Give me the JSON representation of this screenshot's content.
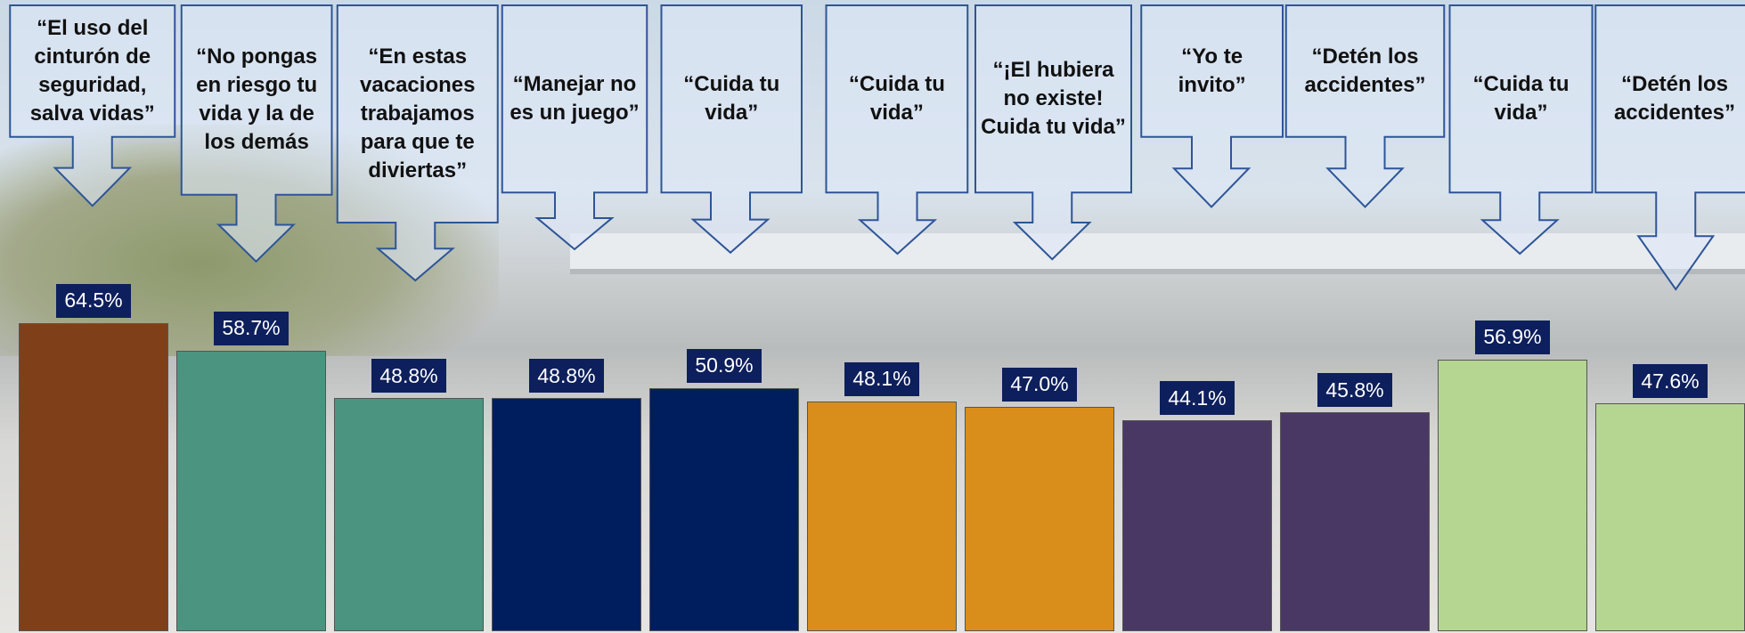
{
  "chart_data": {
    "type": "bar",
    "categories": [
      "“El uso del cinturón de seguridad, salva vidas”",
      "“No pongas en riesgo tu vida y la de los demás",
      "“En estas vacaciones trabajamos para que te diviertas”",
      "“Manejar no es un juego”",
      "“Cuida tu vida”",
      "“Cuida tu vida”",
      "“¡El hubiera no existe! Cuida tu vida”",
      "“Yo te invito”",
      "“Detén los accidentes”",
      "“Cuida tu vida”",
      "“Detén los accidentes”"
    ],
    "values": [
      64.5,
      58.7,
      48.8,
      48.8,
      50.9,
      48.1,
      47.0,
      44.1,
      45.8,
      56.9,
      47.6
    ],
    "value_labels": [
      "64.5%",
      "58.7%",
      "48.8%",
      "48.8%",
      "50.9%",
      "48.1%",
      "47.0%",
      "44.1%",
      "45.8%",
      "56.9%",
      "47.6%"
    ],
    "colors": [
      "#7f4019",
      "#4b9480",
      "#4b9480",
      "#001e5e",
      "#001e5e",
      "#d98e1b",
      "#d98e1b",
      "#4a3864",
      "#4a3864",
      "#b5d690",
      "#b5d690"
    ]
  }
}
